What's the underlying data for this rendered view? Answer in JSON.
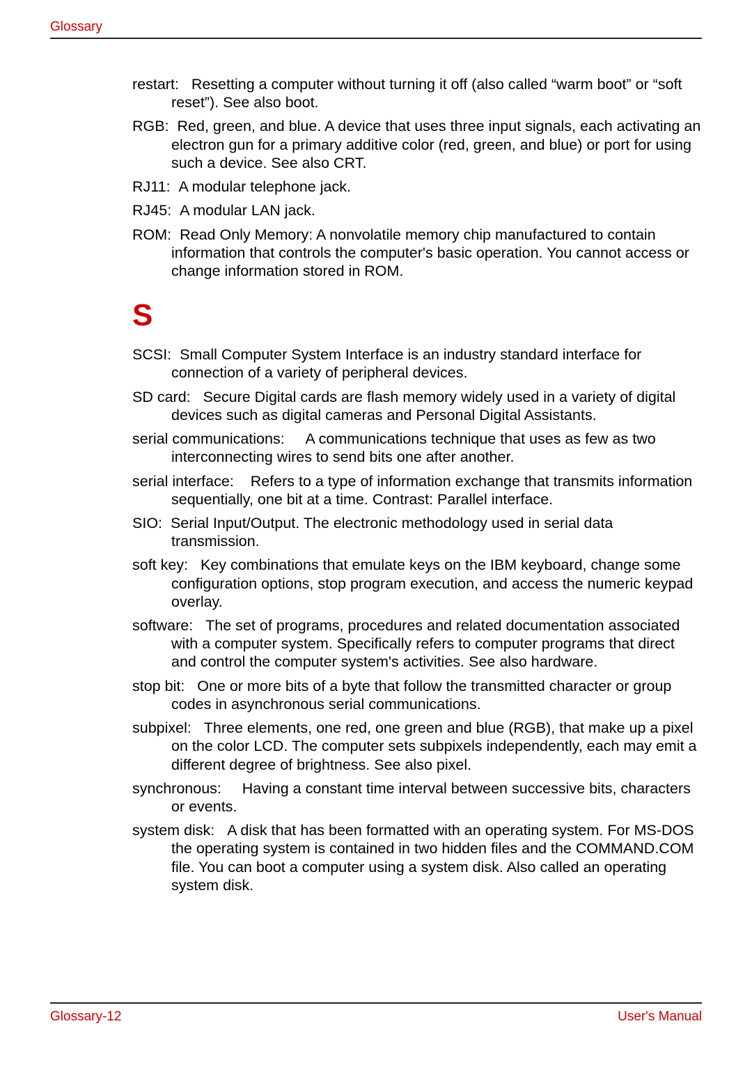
{
  "header": {
    "label": "Glossary"
  },
  "footer": {
    "left": "Glossary-12",
    "right": "User's Manual"
  },
  "colors": {
    "accent": "#cc0000",
    "rule": "#222222",
    "text": "#000000",
    "background": "#ffffff"
  },
  "typography": {
    "body_fontsize_pt": 16,
    "section_letter_fontsize_pt": 33,
    "header_fontsize_pt": 14,
    "font_family": "Arial"
  },
  "sections": [
    {
      "letter": null,
      "entries": [
        {
          "term": "restart:",
          "definition": "Resetting a computer without turning it off (also called “warm boot” or “soft reset”). See also boot."
        },
        {
          "term": "RGB:",
          "definition": "Red, green, and blue. A device that uses three input signals, each activating an electron gun for a primary additive color (red, green, and blue) or port for using such a device. See also CRT."
        },
        {
          "term": "RJ11:",
          "definition": "A modular telephone jack."
        },
        {
          "term": "RJ45:",
          "definition": "A modular LAN jack."
        },
        {
          "term": "ROM:",
          "definition": "Read Only Memory: A nonvolatile memory chip manufactured to contain information that controls the computer's basic operation. You cannot access or change information stored in ROM."
        }
      ]
    },
    {
      "letter": "S",
      "entries": [
        {
          "term": "SCSI:",
          "definition": "Small Computer System Interface is an industry standard interface for connection of a variety of peripheral devices."
        },
        {
          "term": "SD card:",
          "definition": "Secure Digital cards are flash memory widely used in a variety of digital devices such as digital cameras and Personal Digital Assistants."
        },
        {
          "term": "serial communications:",
          "definition": "A communications technique that uses as few as two interconnecting wires to send bits one after another."
        },
        {
          "term": "serial interface:",
          "definition": "Refers to a type of information exchange that transmits information sequentially, one bit at a time. Contrast: Parallel interface."
        },
        {
          "term": "SIO:",
          "definition": "Serial Input/Output. The electronic methodology used in serial data transmission."
        },
        {
          "term": "soft key:",
          "definition": "Key combinations that emulate keys on the IBM keyboard, change some configuration options, stop program execution, and access the numeric keypad overlay."
        },
        {
          "term": "software:",
          "definition": "The set of programs, procedures and related documentation associated with a computer system. Specifically refers to computer programs that direct and control the computer system's activities. See also hardware."
        },
        {
          "term": "stop bit:",
          "definition": "One or more bits of a byte that follow the transmitted character or group codes in asynchronous serial communications."
        },
        {
          "term": "subpixel:",
          "definition": "Three elements, one red, one green and blue (RGB), that make up a pixel on the color LCD. The computer sets subpixels independently, each may emit a different degree of brightness. See also pixel."
        },
        {
          "term": "synchronous:",
          "definition": "Having a constant time interval between successive bits, characters or events."
        },
        {
          "term": "system disk:",
          "definition": "A disk that has been formatted with an operating system. For MS-DOS the operating system is contained in two hidden files and the COMMAND.COM file. You can boot a computer using a system disk. Also called an operating system disk."
        }
      ]
    }
  ]
}
